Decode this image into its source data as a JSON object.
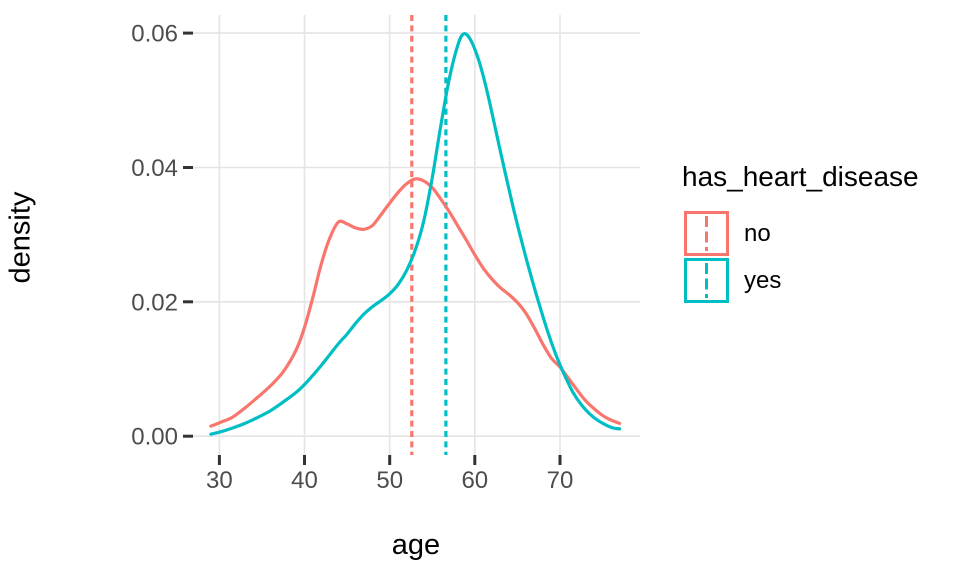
{
  "figure": {
    "background": "#ffffff"
  },
  "legend": {
    "title": "has_heart_disease",
    "items": [
      {
        "label": "no",
        "color": "#F8766D"
      },
      {
        "label": "yes",
        "color": "#00BFC4"
      }
    ]
  },
  "style": {
    "panel_background": "#ffffff",
    "grid_color": "#e4e4e4",
    "tick_mark_color": "#333333",
    "tick_label_color": "#4d4d4d",
    "axis_title_color": "#000000",
    "curve_stroke_width": 3.2,
    "vline_dash": "6 4.4",
    "legend_key_dash": "11 4.5"
  },
  "chart_data": {
    "type": "line",
    "subtype": "density",
    "title": "",
    "xlabel": "age",
    "ylabel": "density",
    "x_ticks": {
      "values": [
        30,
        40,
        50,
        60,
        70
      ],
      "labels": [
        "30",
        "40",
        "50",
        "60",
        "70"
      ]
    },
    "y_ticks": {
      "values": [
        0,
        0.02,
        0.04,
        0.06
      ],
      "labels": [
        "0.00",
        "0.02",
        "0.04",
        "0.06"
      ]
    },
    "xlim": [
      26.9,
      79.4
    ],
    "ylim": [
      -0.0028,
      0.0627
    ],
    "grid": "major-only",
    "legend_position": "right",
    "legend_title": "has_heart_disease",
    "series": [
      {
        "name": "no",
        "color": "#F8766D",
        "mean_vline_x": 52.6,
        "points": [
          [
            29,
            0.0015
          ],
          [
            30,
            0.002
          ],
          [
            31.5,
            0.0028
          ],
          [
            33,
            0.0042
          ],
          [
            34.5,
            0.0058
          ],
          [
            36,
            0.0075
          ],
          [
            37.5,
            0.0096
          ],
          [
            39,
            0.0128
          ],
          [
            40,
            0.0162
          ],
          [
            41,
            0.0208
          ],
          [
            42,
            0.0258
          ],
          [
            43,
            0.0296
          ],
          [
            44,
            0.0319
          ],
          [
            45,
            0.0316
          ],
          [
            46,
            0.031
          ],
          [
            47,
            0.0308
          ],
          [
            48,
            0.0314
          ],
          [
            49,
            0.033
          ],
          [
            50,
            0.0347
          ],
          [
            51,
            0.0363
          ],
          [
            52,
            0.0376
          ],
          [
            53,
            0.0383
          ],
          [
            54,
            0.038
          ],
          [
            55,
            0.037
          ],
          [
            56,
            0.0353
          ],
          [
            57,
            0.0334
          ],
          [
            58,
            0.0313
          ],
          [
            59,
            0.0292
          ],
          [
            60,
            0.027
          ],
          [
            61,
            0.025
          ],
          [
            62,
            0.0234
          ],
          [
            63,
            0.0221
          ],
          [
            64,
            0.0211
          ],
          [
            65,
            0.0199
          ],
          [
            66,
            0.0183
          ],
          [
            67,
            0.0161
          ],
          [
            68,
            0.0137
          ],
          [
            69,
            0.0116
          ],
          [
            70,
            0.0103
          ],
          [
            71,
            0.0086
          ],
          [
            72,
            0.0069
          ],
          [
            73,
            0.0053
          ],
          [
            74,
            0.0041
          ],
          [
            75,
            0.0031
          ],
          [
            76,
            0.0024
          ],
          [
            77,
            0.0019
          ]
        ]
      },
      {
        "name": "yes",
        "color": "#00BFC4",
        "mean_vline_x": 56.6,
        "points": [
          [
            29,
            0.0003
          ],
          [
            30,
            0.0006
          ],
          [
            31.5,
            0.0012
          ],
          [
            33,
            0.0019
          ],
          [
            34.5,
            0.0028
          ],
          [
            36,
            0.0038
          ],
          [
            37.5,
            0.0051
          ],
          [
            39,
            0.0065
          ],
          [
            40,
            0.0077
          ],
          [
            41,
            0.0091
          ],
          [
            42,
            0.0106
          ],
          [
            43,
            0.0122
          ],
          [
            44,
            0.0138
          ],
          [
            45,
            0.0152
          ],
          [
            46,
            0.0168
          ],
          [
            47,
            0.0182
          ],
          [
            48,
            0.0193
          ],
          [
            49,
            0.0202
          ],
          [
            50,
            0.0212
          ],
          [
            51,
            0.0226
          ],
          [
            52,
            0.0247
          ],
          [
            53,
            0.0277
          ],
          [
            54,
            0.032
          ],
          [
            55,
            0.0385
          ],
          [
            56,
            0.0462
          ],
          [
            57,
            0.0532
          ],
          [
            58,
            0.0582
          ],
          [
            58.7,
            0.0599
          ],
          [
            59.5,
            0.059
          ],
          [
            60.5,
            0.0558
          ],
          [
            61.5,
            0.051
          ],
          [
            62.5,
            0.0453
          ],
          [
            63.5,
            0.0396
          ],
          [
            64.5,
            0.0341
          ],
          [
            65.5,
            0.029
          ],
          [
            66.5,
            0.0243
          ],
          [
            67.5,
            0.0199
          ],
          [
            68.5,
            0.0158
          ],
          [
            69.5,
            0.0122
          ],
          [
            70.5,
            0.0092
          ],
          [
            71.5,
            0.0066
          ],
          [
            72.5,
            0.0047
          ],
          [
            73.5,
            0.0033
          ],
          [
            74.5,
            0.0023
          ],
          [
            75.5,
            0.0016
          ],
          [
            76.3,
            0.0012
          ],
          [
            77,
            0.0011
          ]
        ]
      }
    ]
  }
}
